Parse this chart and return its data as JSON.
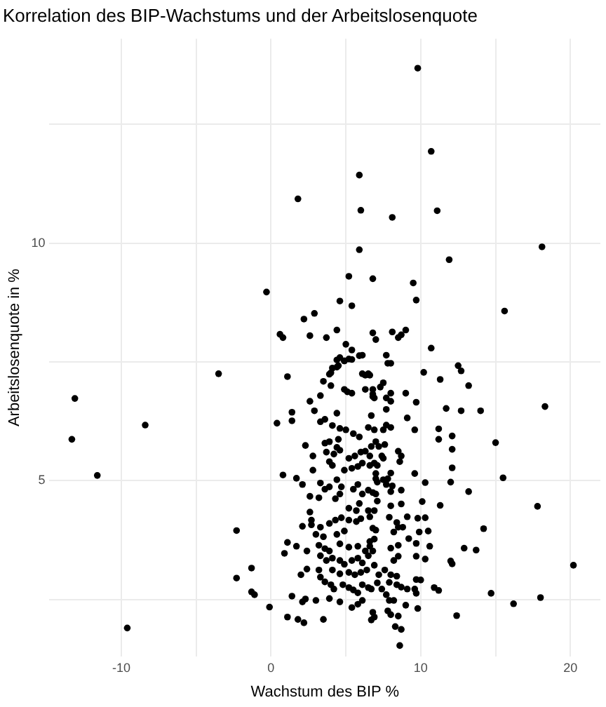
{
  "chart_data": {
    "type": "scatter",
    "title": "Korrelation des BIP-Wachstums und der Arbeitslosenquote",
    "xlabel": "Wachstum des BIP %",
    "ylabel": "Arbeitslosenquote in %",
    "xlim": [
      -14.8,
      22.0
    ],
    "ylim": [
      1.3,
      14.3
    ],
    "xticks": [
      -10,
      {
        "value": -5,
        "label": null
      },
      0,
      {
        "value": 5,
        "label": null
      },
      10,
      {
        "value": 15,
        "label": null
      },
      20
    ],
    "yticks": [
      {
        "value": 2.5,
        "label": null
      },
      5,
      {
        "value": 7.5,
        "label": null
      },
      10,
      {
        "value": 12.5,
        "label": null
      }
    ],
    "grid": true,
    "marker": "circle",
    "series": [
      {
        "color": "#000000",
        "x": [
          -0.3,
          0.6,
          -3.5,
          9.8,
          10.7,
          5.9,
          1.8,
          6.0,
          8.1,
          11.1,
          5.9,
          18.1,
          11.9,
          5.2,
          6.8,
          9.5,
          9.7,
          4.6,
          5.4,
          15.6,
          2.9,
          2.2,
          0.8,
          2.6,
          3.7,
          4.4,
          5.0,
          5.4,
          6.8,
          7.0,
          8.1,
          8.5,
          8.7,
          9.0,
          10.7,
          6.1,
          4.4,
          4.9,
          5.4,
          7.7,
          7.8,
          8.0,
          4.0,
          4.4,
          10.2,
          12.5,
          12.7,
          6.1,
          6.5,
          -13.1,
          -8.4,
          0.4,
          -13.3,
          -11.6,
          -2.3,
          -1.3,
          -2.3,
          -1.3,
          -1.1,
          -0.1,
          -9.6,
          13.2,
          14.0,
          18.3,
          15.0,
          15.5,
          13.2,
          17.8,
          14.2,
          13.7,
          12.9,
          20.2,
          14.7,
          18.0,
          16.2,
          11.3,
          11.7,
          12.7,
          11.2,
          11.2,
          12.1,
          12.1,
          12.1,
          12.0,
          10.3,
          11.3,
          10.1,
          12.0,
          12.1,
          10.9,
          11.2,
          12.4,
          10.3,
          9.9,
          10.5,
          10.6,
          10.3,
          9.8,
          9.7,
          9.6,
          9.1,
          9.0,
          9.6,
          8.7,
          9.1,
          9.2,
          9.7,
          9.7,
          9.7,
          10.0,
          9.7,
          9.8,
          9.0,
          8.5,
          8.7,
          8.6,
          8.3,
          7.8,
          8.0,
          7.9,
          8.2,
          6.7,
          6.9,
          8.4,
          8.7,
          7.7,
          7.4,
          7.1,
          7.9,
          6.7,
          8.4,
          8.0,
          7.2,
          7.6,
          6.9,
          8.2,
          8.5,
          8.0,
          8.5,
          8.8,
          8.2,
          8.5,
          8.4,
          7.9,
          6.8,
          7.0,
          6.9,
          6.6,
          6.8,
          8.0,
          6.9,
          7.1,
          8.7,
          8.0,
          7.7,
          8.1,
          7.5,
          7.8,
          6.8,
          7.0,
          7.0,
          7.1,
          7.0,
          8.0,
          6.9,
          7.1,
          7.4,
          7.5,
          7.6,
          7.0,
          7.2,
          6.7,
          8.5,
          8.7,
          8.6,
          7.5,
          8.0,
          7.7,
          6.5,
          6.9,
          6.7,
          7.7,
          7.7,
          8.0,
          8.0,
          6.8,
          6.9,
          7.3,
          7.5,
          6.6,
          6.8,
          6.8,
          6.5,
          6.6,
          5.9,
          4.6,
          4.9,
          5.2,
          4.1,
          4.5,
          3.9,
          1.1,
          3.5,
          4.0,
          4.9,
          5.1,
          5.4,
          6.3,
          6.3,
          3.3,
          2.6,
          2.9,
          1.4,
          1.4,
          3.3,
          4.4,
          3.6,
          4.1,
          4.6,
          5.0,
          5.5,
          5.9,
          3.6,
          3.9,
          2.3,
          4.5,
          3.7,
          4.2,
          4.4,
          4.6,
          3.9,
          4.1,
          2.8,
          2.8,
          5.2,
          5.6,
          6.0,
          6.3,
          4.9,
          5.4,
          5.8,
          6.1,
          6.6,
          6.6,
          0.8,
          1.7,
          2.1,
          3.3,
          3.6,
          3.9,
          4.4,
          4.7,
          2.6,
          3.2,
          4.3,
          4.6,
          5.5,
          5.8,
          6.1,
          6.5,
          5.2,
          5.7,
          5.9,
          2.6,
          2.7,
          3.9,
          4.3,
          4.7,
          5.2,
          5.7,
          6.0,
          2.1,
          2.7,
          3.3,
          3.0,
          3.5,
          4.4,
          4.9,
          1.1,
          1.7,
          0.9,
          3.2,
          3.6,
          3.9,
          4.6,
          5.2,
          5.8,
          6.3,
          6.6,
          2.4,
          3.3,
          3.7,
          4.1,
          4.6,
          4.9,
          5.4,
          5.8,
          6.1,
          6.5,
          2.4,
          2.0,
          3.2,
          4.1,
          4.6,
          5.2,
          5.6,
          6.0,
          6.4,
          3.3,
          3.6,
          4.0,
          4.2,
          4.8,
          5.2,
          5.5,
          5.8,
          6.1,
          6.5,
          1.4,
          2.3,
          2.1,
          3.0,
          3.9,
          4.6,
          5.4,
          5.8,
          6.1,
          1.1,
          1.8,
          2.2,
          3.5,
          6.8,
          9.1,
          9.6
        ],
        "values": [
          8.97,
          8.08,
          7.25,
          13.68,
          11.93,
          11.43,
          10.93,
          10.69,
          10.54,
          10.68,
          9.86,
          9.92,
          9.65,
          9.3,
          9.25,
          9.16,
          8.8,
          8.78,
          8.68,
          8.57,
          8.52,
          8.4,
          8.01,
          8.05,
          8.01,
          8.17,
          7.87,
          7.75,
          8.11,
          7.97,
          8.13,
          8.01,
          8.07,
          8.17,
          7.79,
          7.64,
          7.54,
          7.52,
          7.55,
          7.64,
          7.47,
          7.47,
          7.27,
          7.39,
          7.28,
          7.42,
          7.31,
          7.25,
          7.25,
          6.73,
          6.17,
          6.21,
          5.87,
          5.11,
          3.95,
          3.16,
          2.95,
          2.66,
          2.6,
          2.34,
          1.9,
          7.0,
          6.47,
          6.56,
          5.8,
          5.06,
          4.77,
          4.46,
          3.99,
          3.54,
          3.58,
          3.22,
          2.63,
          2.54,
          2.41,
          7.13,
          6.52,
          6.47,
          6.09,
          5.87,
          5.94,
          5.66,
          5.27,
          4.97,
          4.96,
          4.48,
          4.56,
          3.31,
          3.25,
          2.75,
          2.69,
          2.16,
          3.35,
          3.92,
          3.94,
          3.62,
          4.22,
          4.21,
          6.65,
          6.07,
          6.32,
          6.84,
          5.15,
          4.51,
          4.24,
          3.78,
          3.68,
          3.41,
          2.92,
          2.91,
          2.63,
          2.31,
          2.38,
          2.15,
          1.87,
          1.53,
          1.93,
          2.26,
          2.18,
          2.48,
          2.48,
          2.07,
          2.13,
          2.81,
          2.76,
          2.6,
          2.72,
          2.85,
          2.86,
          2.72,
          2.99,
          3.02,
          3.02,
          3.12,
          3.22,
          3.32,
          3.41,
          3.58,
          3.64,
          4.02,
          3.92,
          4.02,
          4.12,
          4.23,
          4.0,
          3.96,
          3.77,
          3.62,
          3.52,
          4.47,
          4.37,
          4.57,
          4.8,
          4.77,
          4.92,
          4.89,
          5.02,
          5.04,
          4.75,
          4.72,
          5.04,
          4.97,
          5.15,
          5.16,
          5.37,
          5.32,
          5.52,
          5.47,
          5.76,
          5.82,
          5.72,
          5.72,
          5.62,
          5.52,
          5.4,
          6.07,
          6.12,
          6.17,
          6.12,
          6.07,
          6.37,
          6.5,
          6.74,
          6.84,
          6.67,
          6.82,
          6.74,
          6.97,
          7.06,
          7.22,
          6.92,
          6.77,
          4.37,
          4.24,
          7.63,
          7.59,
          7.52,
          7.56,
          7.37,
          7.42,
          7.24,
          7.19,
          7.09,
          7.0,
          6.92,
          6.87,
          6.84,
          7.22,
          6.92,
          6.79,
          6.67,
          6.47,
          6.44,
          6.26,
          6.24,
          6.42,
          6.29,
          6.16,
          6.1,
          6.07,
          5.99,
          5.92,
          5.79,
          5.82,
          5.74,
          5.87,
          5.6,
          5.56,
          5.7,
          5.64,
          5.4,
          5.32,
          5.52,
          5.22,
          5.47,
          5.52,
          5.6,
          5.62,
          5.22,
          5.26,
          5.3,
          5.37,
          5.52,
          5.32,
          5.12,
          5.05,
          4.92,
          4.95,
          4.82,
          4.87,
          5.02,
          4.87,
          4.67,
          4.64,
          4.62,
          4.72,
          4.82,
          4.92,
          4.72,
          4.8,
          4.42,
          4.37,
          4.52,
          4.34,
          4.17,
          4.1,
          4.17,
          4.22,
          4.17,
          4.14,
          4.2,
          4.04,
          4.07,
          4.02,
          3.87,
          3.82,
          3.87,
          3.94,
          3.7,
          3.62,
          3.47,
          3.64,
          3.57,
          3.52,
          3.67,
          3.6,
          3.62,
          3.52,
          3.72,
          3.52,
          3.42,
          3.32,
          3.37,
          3.32,
          3.24,
          3.32,
          3.37,
          3.27,
          3.42,
          3.14,
          3.02,
          3.12,
          3.12,
          3.04,
          3.07,
          3.02,
          3.07,
          3.12,
          2.97,
          2.87,
          2.81,
          2.72,
          2.81,
          2.75,
          2.7,
          2.64,
          2.81,
          2.75,
          2.57,
          2.51,
          2.45,
          2.48,
          2.52,
          2.45,
          2.33,
          2.4,
          2.48,
          2.13,
          2.08,
          2.01,
          2.08,
          2.23,
          2.72,
          2.72
        ]
      }
    ]
  }
}
